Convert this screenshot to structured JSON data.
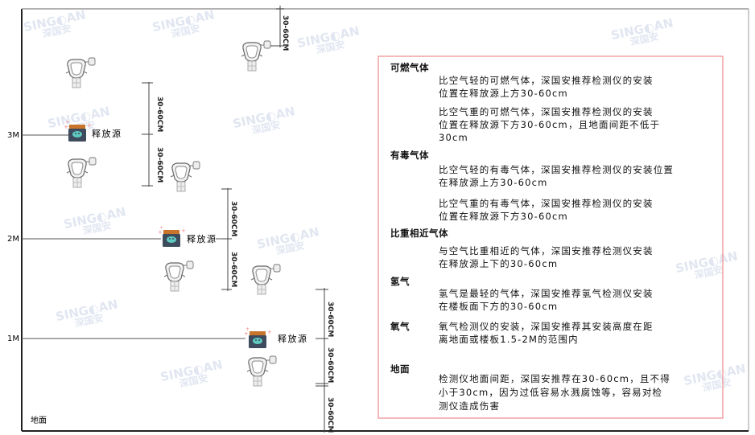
{
  "watermark": {
    "brand": "SINGOAN",
    "cn": "深国安"
  },
  "levels": [
    {
      "label": "3M",
      "source_label": "释放源"
    },
    {
      "label": "2M",
      "source_label": "释放源"
    },
    {
      "label": "1M",
      "source_label": "释放源"
    }
  ],
  "ground_label": "地面",
  "dimension_label": "30-60CM",
  "colors": {
    "frame": "#333333",
    "box_border": "#f08a8a",
    "source_body": "#3d4b5c",
    "source_cap": "#c8742a",
    "source_face": "#5fc9c0"
  },
  "info": {
    "flammable": {
      "title": "可燃气体",
      "lighter": [
        "比空气轻的可燃气体，深国安推荐检测仪的安装",
        "位置在释放源上方30-60cm"
      ],
      "heavier": [
        "比空气重的可燃气体，深国安推荐检测仪的安装",
        "位置在释放源下方30-60cm，且地面间距不低于",
        "30cm"
      ]
    },
    "toxic": {
      "title": "有毒气体",
      "lighter": [
        "比空气轻的有毒气体，深国安推荐检测仪的安装位置",
        "在释放源上方30-60cm"
      ],
      "heavier": [
        "比空气重的有毒气体，深国安推荐检测仪的安装",
        "位置在释放源下方30-60cm"
      ]
    },
    "similar": {
      "title": "比重相近气体",
      "lines": [
        "与空气比重相近的气体，深国安推荐检测仪安装",
        "在释放源上下的30-60cm"
      ]
    },
    "hydrogen": {
      "title": "氢气",
      "lines": [
        "氢气是最轻的气体，深国安推荐氢气检测仪安装",
        "在楼板面下方的30-60cm"
      ]
    },
    "oxygen": {
      "title": "氧气",
      "lines": [
        "氧气检测仪的安装，深国安推荐其安装高度在距",
        "离地面或楼板1.5-2M的范围内"
      ]
    },
    "ground": {
      "title": "地面",
      "lines": [
        "检测仪地面间距，深国安推荐在30-60cm，且不得",
        "小于30cm，因为过低容易水溅腐蚀等，容易对检",
        "测仪造成伤害"
      ]
    }
  }
}
